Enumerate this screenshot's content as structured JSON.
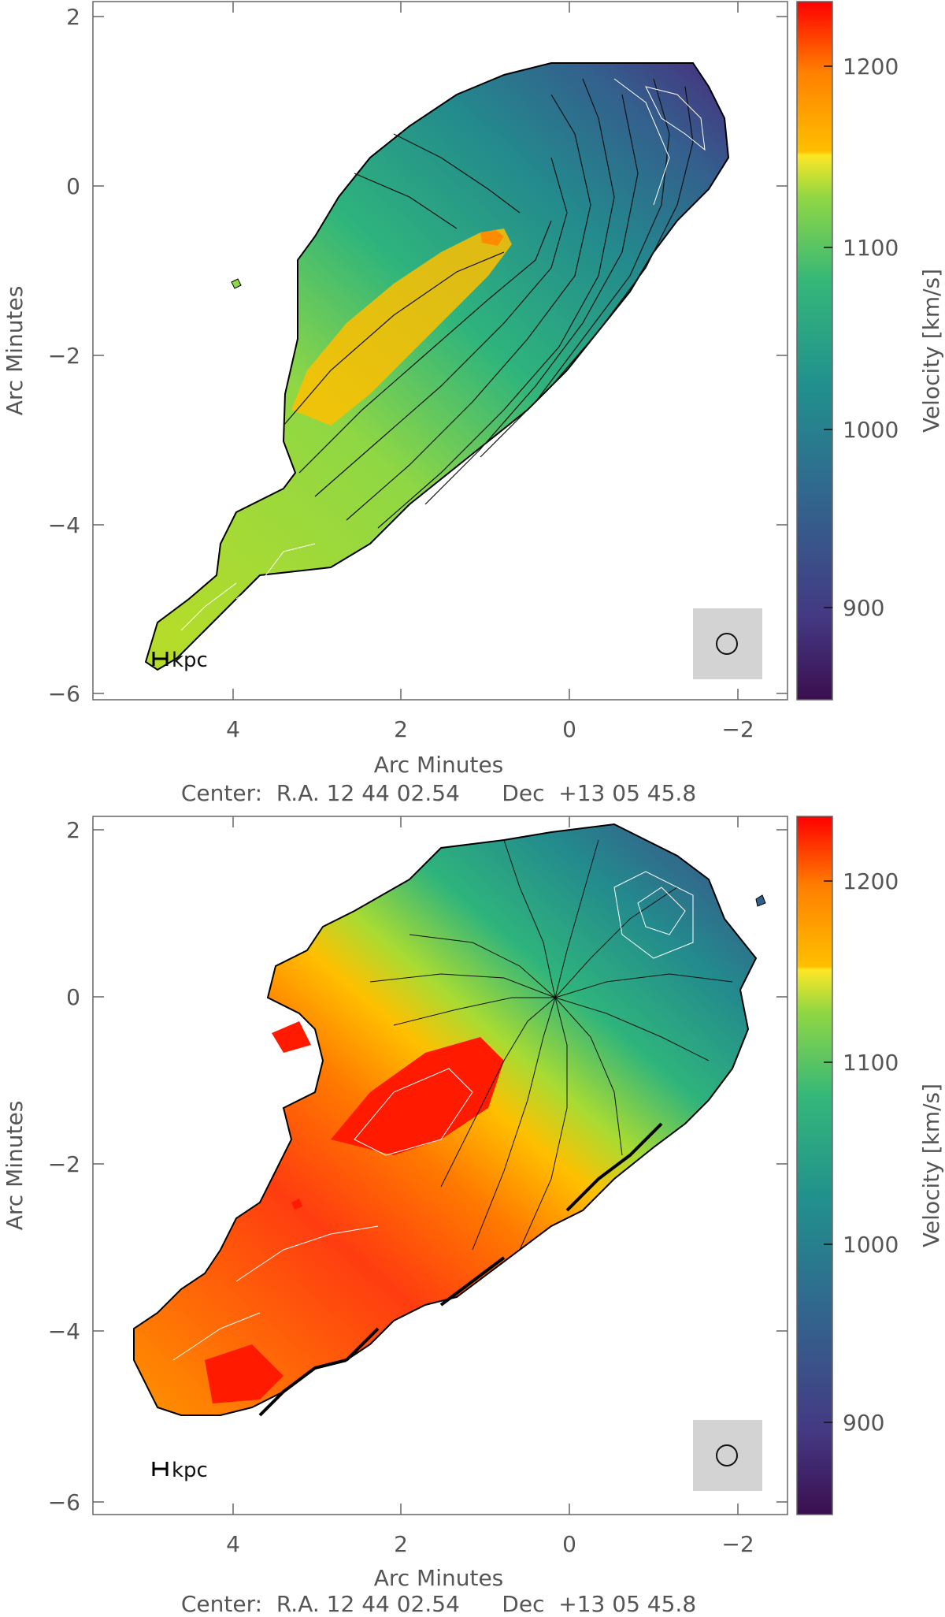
{
  "panels": [
    {
      "xlabel": "Arc Minutes",
      "ylabel": "Arc Minutes",
      "center_caption": "Center:  R.A. 12 44 02.54      Dec  +13 05 45.8",
      "scalebar_label": "kpc",
      "x_ticks": [
        "4",
        "2",
        "0",
        "−2"
      ],
      "y_ticks": [
        "2",
        "0",
        "−2",
        "−4",
        "−6"
      ],
      "colorbar_label": "Velocity [km/s]",
      "colorbar_ticks": [
        "900",
        "1000",
        "1100",
        "1200"
      ]
    },
    {
      "xlabel": "Arc Minutes",
      "ylabel": "Arc Minutes",
      "center_caption": "Center:  R.A. 12 44 02.54      Dec  +13 05 45.8",
      "scalebar_label": "kpc",
      "x_ticks": [
        "4",
        "2",
        "0",
        "−2"
      ],
      "y_ticks": [
        "2",
        "0",
        "−2",
        "−4",
        "−6"
      ],
      "colorbar_label": "Velocity [km/s]",
      "colorbar_ticks": [
        "900",
        "1000",
        "1100",
        "1200"
      ]
    }
  ],
  "colorbar_range": [
    850,
    1235
  ],
  "colormap": [
    "#3b0f4f",
    "#443983",
    "#31688e",
    "#21908d",
    "#35b779",
    "#90d743",
    "#fde725",
    "#ffc000",
    "#ff7f00",
    "#ff0000"
  ],
  "beam_icon": "circle-beam-icon"
}
